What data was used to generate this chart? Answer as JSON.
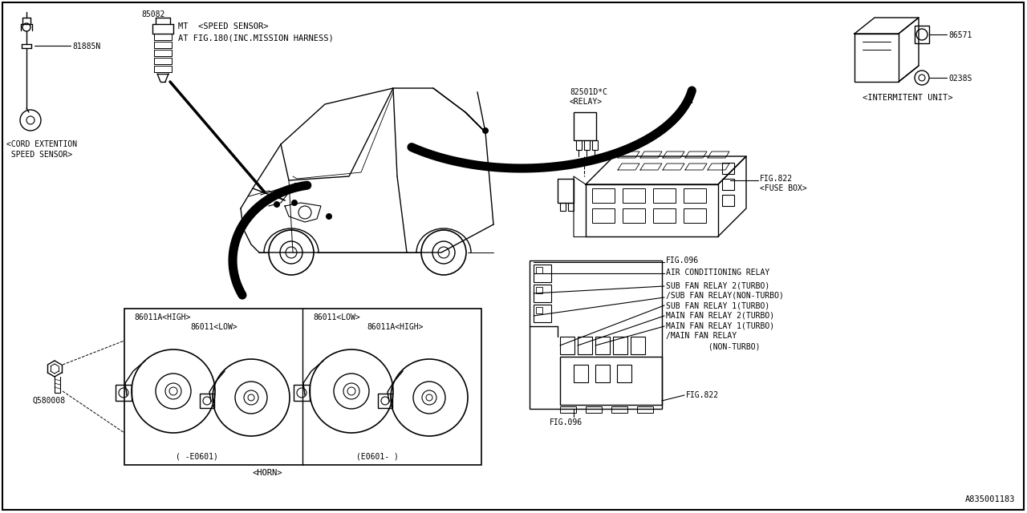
{
  "bg_color": "#ffffff",
  "line_color": "#000000",
  "fig_number": "A835001183",
  "font_family": "monospace",
  "parts": {
    "cord_part": "81885N",
    "speed_sensor_part": "85082",
    "speed_sensor_line1": "MT  <SPEED SENSOR>",
    "speed_sensor_line2": "AT FIG.180(INC.MISSION HARNESS)",
    "intermitent_part1": "86571",
    "intermitent_part2": "0238S",
    "intermitent_label": "<INTERMITENT UNIT>",
    "relay_part_line1": "82501D*C",
    "relay_part_line2": "<RELAY>",
    "fusebox_fig": "FIG.822",
    "fusebox_label": "<FUSE BOX>",
    "fig096_top": "FIG.096",
    "air_cond": "AIR CONDITIONING RELAY",
    "sub_fan2_turbo": "SUB FAN RELAY 2(TURBO)",
    "sub_fan_non": "/SUB FAN RELAY(NON-TURBO)",
    "sub_fan1_turbo": "SUB FAN RELAY 1(TURBO)",
    "main_fan2_turbo": "MAIN FAN RELAY 2(TURBO)",
    "main_fan1_turbo": "MAIN FAN RELAY 1(TURBO)",
    "main_fan_relay": "/MAIN FAN RELAY",
    "non_turbo": "         (NON-TURBO)",
    "fig822_bot": "FIG.822",
    "fig096_bot": "FIG.096",
    "horn_label": "<HORN>",
    "horn_left_top": "86011A<HIGH>",
    "horn_left_bot": "86011<LOW>",
    "horn_right_top": "86011<LOW>",
    "horn_right_bot": "86011A<HIGH>",
    "horn_left_period": "( -E0601)",
    "horn_right_period": "(E0601- )",
    "bolt_part": "Q580008",
    "cord_label1": "<CORD EXTENTION",
    "cord_label2": " SPEED SENSOR>"
  }
}
